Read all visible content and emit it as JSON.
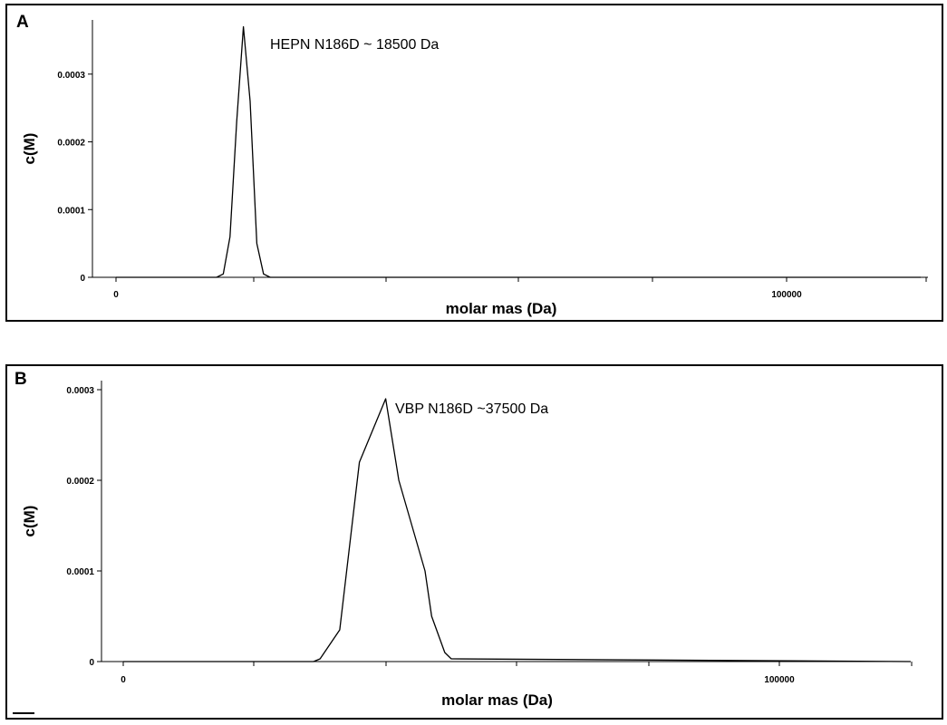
{
  "chart_data": [
    {
      "panel_label": "A",
      "type": "line",
      "xlabel": "molar mas (Da)",
      "ylabel": "c(M)",
      "xlim": [
        -2500,
        122500
      ],
      "ylim": [
        0,
        0.00038
      ],
      "x_ticks_labeled": [
        "0",
        "100000"
      ],
      "y_ticks": [
        "0",
        "0.0001",
        "0.0002",
        "0.0003"
      ],
      "grid": false,
      "annotation": "HEPN  N186D ~ 18500 Da",
      "series": [
        {
          "x": [
            0,
            15000,
            16000,
            17000,
            18000,
            19000,
            20000,
            21000,
            22000,
            23000,
            60000,
            120000
          ],
          "y": [
            0,
            0,
            5e-06,
            6e-05,
            0.00023,
            0.00037,
            0.00026,
            5e-05,
            5e-06,
            0,
            0,
            0
          ]
        }
      ]
    },
    {
      "panel_label": "B",
      "type": "line",
      "xlabel": "molar mas (Da)",
      "ylabel": "c(M)",
      "xlim": [
        -2500,
        120000
      ],
      "ylim": [
        0,
        0.00031
      ],
      "x_ticks_labeled": [
        "0",
        "100000"
      ],
      "y_ticks": [
        "0",
        "0.0001",
        "0.0002",
        "0.0003"
      ],
      "grid": false,
      "annotation": "VBP N186D ~37500 Da",
      "series": [
        {
          "x": [
            0,
            29000,
            30000,
            33000,
            36000,
            40000,
            42000,
            46000,
            47000,
            49000,
            50000,
            120000
          ],
          "y": [
            0,
            0,
            3e-06,
            3.5e-05,
            0.00022,
            0.00029,
            0.0002,
            0.0001,
            5e-05,
            1e-05,
            3e-06,
            0
          ]
        }
      ]
    }
  ]
}
